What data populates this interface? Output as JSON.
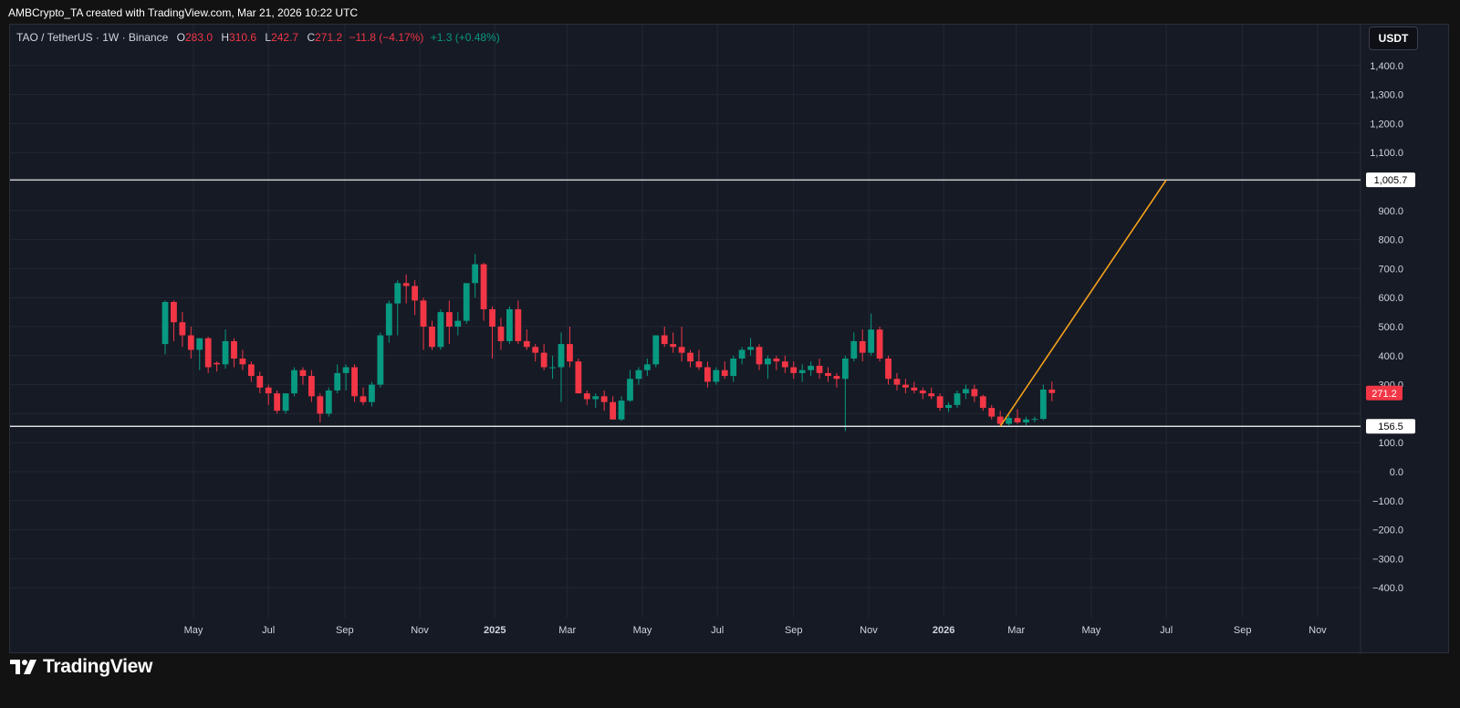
{
  "credit": "AMBCrypto_TA created with TradingView.com, Mar 21, 2026 10:22 UTC",
  "legend": {
    "symbol": "TAO / TetherUS · 1W · Binance",
    "o_label": "O",
    "o_value": "283.0",
    "h_label": "H",
    "h_value": "310.6",
    "l_label": "L",
    "l_value": "242.7",
    "c_label": "C",
    "c_value": "271.2",
    "change": "−11.8 (−4.17%)",
    "extra": "+1.3 (+0.48%)"
  },
  "currency_button": "USDT",
  "brand": "TradingView",
  "colors": {
    "up": "#089981",
    "down": "#f23645",
    "background": "#161a25",
    "grid": "#232734",
    "level_line": "#ffffff",
    "projection": "#f7a21b"
  },
  "chart_data": {
    "type": "candlestick",
    "ylim": [
      -450,
      1450
    ],
    "yticks": [
      1400,
      1300,
      1200,
      1100,
      1000,
      900,
      800,
      700,
      600,
      500,
      400,
      300,
      200,
      100,
      0,
      -100,
      -200,
      -300,
      -400
    ],
    "ytick_labels": [
      "1,400.0",
      "1,300.0",
      "1,200.0",
      "1,100.0",
      "",
      "900.0",
      "800.0",
      "700.0",
      "600.0",
      "500.0",
      "400.0",
      "300.0",
      "",
      "100.0",
      "0.0",
      "−100.0",
      "−200.0",
      "−300.0",
      "−400.0"
    ],
    "x_start": "2024-04-08",
    "x_end": "2026-11-30",
    "xticks": [
      {
        "date": "2024-05-01",
        "label": "May",
        "bold": false
      },
      {
        "date": "2024-07-01",
        "label": "Jul",
        "bold": false
      },
      {
        "date": "2024-09-01",
        "label": "Sep",
        "bold": false
      },
      {
        "date": "2024-11-01",
        "label": "Nov",
        "bold": false
      },
      {
        "date": "2025-01-01",
        "label": "2025",
        "bold": true
      },
      {
        "date": "2025-03-01",
        "label": "Mar",
        "bold": false
      },
      {
        "date": "2025-05-01",
        "label": "May",
        "bold": false
      },
      {
        "date": "2025-07-01",
        "label": "Jul",
        "bold": false
      },
      {
        "date": "2025-09-01",
        "label": "Sep",
        "bold": false
      },
      {
        "date": "2025-11-01",
        "label": "Nov",
        "bold": false
      },
      {
        "date": "2026-01-01",
        "label": "2026",
        "bold": true
      },
      {
        "date": "2026-03-01",
        "label": "Mar",
        "bold": false
      },
      {
        "date": "2026-05-01",
        "label": "May",
        "bold": false
      },
      {
        "date": "2026-07-01",
        "label": "Jul",
        "bold": false
      },
      {
        "date": "2026-09-01",
        "label": "Sep",
        "bold": false
      },
      {
        "date": "2026-11-01",
        "label": "Nov",
        "bold": false
      }
    ],
    "first_candle_date": "2024-04-08",
    "candle_interval_days": 7,
    "candles": [
      [
        440,
        590,
        405,
        585
      ],
      [
        585,
        590,
        450,
        515
      ],
      [
        515,
        550,
        430,
        470
      ],
      [
        470,
        500,
        390,
        420
      ],
      [
        420,
        460,
        350,
        460
      ],
      [
        460,
        465,
        340,
        360
      ],
      [
        375,
        380,
        345,
        370
      ],
      [
        370,
        490,
        355,
        450
      ],
      [
        450,
        460,
        360,
        390
      ],
      [
        390,
        420,
        350,
        370
      ],
      [
        370,
        380,
        310,
        330
      ],
      [
        330,
        345,
        270,
        290
      ],
      [
        290,
        300,
        230,
        270
      ],
      [
        270,
        280,
        200,
        210
      ],
      [
        210,
        270,
        200,
        270
      ],
      [
        270,
        360,
        260,
        350
      ],
      [
        350,
        360,
        300,
        330
      ],
      [
        330,
        350,
        240,
        260
      ],
      [
        260,
        270,
        170,
        200
      ],
      [
        200,
        290,
        190,
        280
      ],
      [
        280,
        370,
        270,
        340
      ],
      [
        340,
        370,
        280,
        360
      ],
      [
        360,
        370,
        240,
        260
      ],
      [
        260,
        290,
        230,
        240
      ],
      [
        240,
        310,
        225,
        300
      ],
      [
        300,
        480,
        290,
        470
      ],
      [
        470,
        590,
        445,
        580
      ],
      [
        580,
        660,
        470,
        650
      ],
      [
        650,
        680,
        580,
        640
      ],
      [
        640,
        660,
        540,
        590
      ],
      [
        590,
        600,
        420,
        500
      ],
      [
        500,
        520,
        420,
        430
      ],
      [
        430,
        560,
        420,
        550
      ],
      [
        550,
        590,
        440,
        500
      ],
      [
        500,
        550,
        470,
        520
      ],
      [
        520,
        640,
        510,
        650
      ],
      [
        650,
        750,
        600,
        715
      ],
      [
        715,
        720,
        520,
        560
      ],
      [
        560,
        570,
        390,
        500
      ],
      [
        500,
        530,
        420,
        450
      ],
      [
        450,
        570,
        440,
        560
      ],
      [
        560,
        590,
        440,
        450
      ],
      [
        450,
        490,
        420,
        430
      ],
      [
        430,
        440,
        380,
        410
      ],
      [
        410,
        440,
        350,
        360
      ],
      [
        360,
        400,
        320,
        360
      ],
      [
        360,
        480,
        240,
        440
      ],
      [
        440,
        500,
        360,
        380
      ],
      [
        380,
        390,
        270,
        270
      ],
      [
        270,
        280,
        230,
        250
      ],
      [
        250,
        270,
        220,
        260
      ],
      [
        260,
        280,
        210,
        240
      ],
      [
        240,
        260,
        180,
        180
      ],
      [
        180,
        260,
        175,
        245
      ],
      [
        245,
        350,
        240,
        320
      ],
      [
        320,
        360,
        300,
        350
      ],
      [
        350,
        390,
        330,
        370
      ],
      [
        370,
        470,
        360,
        470
      ],
      [
        470,
        500,
        430,
        440
      ],
      [
        440,
        480,
        410,
        430
      ],
      [
        430,
        500,
        380,
        410
      ],
      [
        410,
        420,
        360,
        380
      ],
      [
        380,
        420,
        350,
        360
      ],
      [
        360,
        380,
        290,
        310
      ],
      [
        310,
        360,
        300,
        350
      ],
      [
        350,
        380,
        320,
        330
      ],
      [
        330,
        400,
        310,
        390
      ],
      [
        390,
        430,
        370,
        420
      ],
      [
        420,
        460,
        400,
        430
      ],
      [
        430,
        440,
        350,
        370
      ],
      [
        370,
        400,
        320,
        390
      ],
      [
        390,
        400,
        350,
        380
      ],
      [
        380,
        400,
        340,
        360
      ],
      [
        360,
        380,
        320,
        340
      ],
      [
        340,
        370,
        310,
        350
      ],
      [
        350,
        380,
        330,
        365
      ],
      [
        365,
        390,
        320,
        340
      ],
      [
        340,
        360,
        310,
        330
      ],
      [
        330,
        340,
        290,
        320
      ],
      [
        320,
        400,
        140,
        390
      ],
      [
        390,
        480,
        380,
        450
      ],
      [
        450,
        490,
        380,
        410
      ],
      [
        410,
        545,
        400,
        490
      ],
      [
        490,
        500,
        380,
        390
      ],
      [
        390,
        400,
        300,
        320
      ],
      [
        320,
        340,
        280,
        300
      ],
      [
        300,
        320,
        270,
        290
      ],
      [
        290,
        310,
        270,
        280
      ],
      [
        280,
        290,
        250,
        270
      ],
      [
        270,
        290,
        250,
        260
      ],
      [
        260,
        270,
        210,
        220
      ],
      [
        220,
        240,
        205,
        230
      ],
      [
        230,
        280,
        220,
        270
      ],
      [
        270,
        300,
        250,
        285
      ],
      [
        285,
        300,
        240,
        260
      ],
      [
        260,
        265,
        210,
        220
      ],
      [
        220,
        230,
        180,
        190
      ],
      [
        190,
        210,
        155,
        165
      ],
      [
        165,
        195,
        160,
        185
      ],
      [
        185,
        215,
        165,
        170
      ],
      [
        170,
        190,
        160,
        180
      ],
      [
        180,
        190,
        170,
        182
      ],
      [
        182,
        300,
        178,
        283
      ],
      [
        283,
        310.6,
        242.7,
        271.2
      ]
    ],
    "levels": [
      {
        "value": 1005.7,
        "label": "1,005.7"
      },
      {
        "value": 156.5,
        "label": "156.5"
      }
    ],
    "last_price": {
      "value": 271.2,
      "label": "271.2"
    },
    "projection": {
      "from_date": "2026-02-16",
      "from_value": 156.5,
      "to_date": "2026-07-01",
      "to_value": 1005.7
    }
  }
}
